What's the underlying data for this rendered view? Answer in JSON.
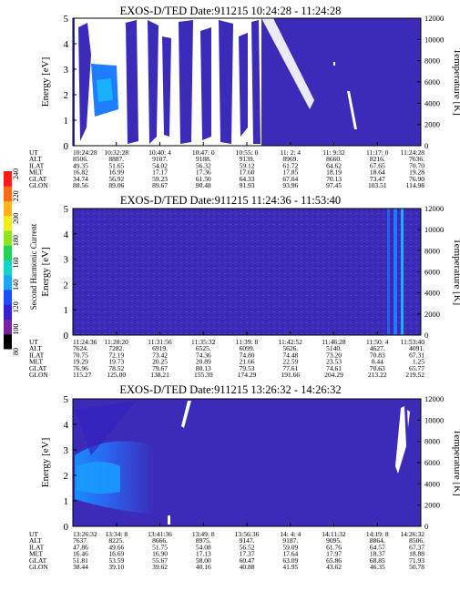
{
  "colorbar": {
    "label": "Second Harmonic Current",
    "ticks": [
      "80",
      "100",
      "120",
      "140",
      "160",
      "180",
      "200",
      "220",
      "240"
    ],
    "colors": [
      "#000000",
      "#7a1fa2",
      "#3a1fd0",
      "#1a4bff",
      "#1aa8ff",
      "#12d6c8",
      "#1fd35a",
      "#8ee61f",
      "#f2ee1a",
      "#ffb21a",
      "#ff6a14",
      "#ff1a1a"
    ]
  },
  "chart_data": [
    {
      "type": "heatmap",
      "title": "EXOS-D/TED   Date:911215  10:24:28 - 11:24:28",
      "ylabel": "Energy [eV]",
      "ylabel_right": "Temperature [K]",
      "ylim": [
        0,
        5
      ],
      "yticks": [
        "0",
        "1",
        "2",
        "3",
        "4",
        "5"
      ],
      "ylim_right": [
        0,
        12000
      ],
      "yticks_right": [
        "0",
        "2000",
        "4000",
        "6000",
        "8000",
        "10000",
        "12000"
      ],
      "table_rows": [
        "UT",
        "ALT",
        "ILAT",
        "MLT",
        "GLAT",
        "GLON"
      ],
      "table": [
        [
          "10:24:28",
          "10:32:28",
          "10:40: 4",
          "10:47: 0",
          "10:55: 0",
          "11: 2: 4",
          "11: 9:32",
          "11:17: 0",
          "11:24:28"
        ],
        [
          "8506.",
          "8887.",
          "9107.",
          "9188.",
          "9139.",
          "8969.",
          "8660.",
          "8216.",
          "7636."
        ],
        [
          "49.35",
          "51.65",
          "54.02",
          "56.32",
          "59.12",
          "61.72",
          "64.62",
          "67.65",
          "70.70"
        ],
        [
          "16.82",
          "16.99",
          "17.17",
          "17.36",
          "17.60",
          "17.85",
          "18.19",
          "18.64",
          "19.28"
        ],
        [
          "34.74",
          "56.92",
          "59.23",
          "61.50",
          "64.33",
          "67.04",
          "70.13",
          "73.47",
          "76.90"
        ],
        [
          "88.56",
          "89.06",
          "89.67",
          "90.48",
          "91.93",
          "93.96",
          "97.45",
          "103.51",
          "114.98"
        ]
      ]
    },
    {
      "type": "heatmap",
      "title": "EXOS-D/TED   Date:911215  11:24:36 - 11:53:40",
      "ylabel": "Energy [eV]",
      "ylabel_right": "Temperature [K]",
      "ylim": [
        0,
        5
      ],
      "yticks": [
        "0",
        "1",
        "2",
        "3",
        "4",
        "5"
      ],
      "ylim_right": [
        0,
        12000
      ],
      "yticks_right": [
        "0",
        "2000",
        "4000",
        "6000",
        "8000",
        "10000",
        "12000"
      ],
      "table_rows": [
        "UT",
        "ALT",
        "ILAT",
        "MLT",
        "GLAT",
        "GLON"
      ],
      "table": [
        [
          "11:24:36",
          "11:28:20",
          "11:31:56",
          "11:35:32",
          "11:39: 8",
          "11:42:52",
          "11:46:28",
          "11:50: 4",
          "11:53:40"
        ],
        [
          "7624.",
          "7282.",
          "6919.",
          "6525.",
          "6099.",
          "5626.",
          "5140.",
          "4627.",
          "4091."
        ],
        [
          "70.75",
          "72.19",
          "73.42",
          "74.36",
          "74.80",
          "74.48",
          "73.20",
          "70.83",
          "67.31"
        ],
        [
          "19.29",
          "19.73",
          "20.25",
          "20.89",
          "21.66",
          "22.59",
          "23.53",
          "0.44",
          "1.25"
        ],
        [
          "76.96",
          "78.52",
          "79.67",
          "80.13",
          "79.53",
          "77.61",
          "74.61",
          "70.63",
          "65.77"
        ],
        [
          "115.27",
          "125.00",
          "138.21",
          "155.39",
          "174.29",
          "191.66",
          "204.29",
          "213.22",
          "219.52"
        ]
      ]
    },
    {
      "type": "heatmap",
      "title": "EXOS-D/TED   Date:911215  13:26:32 - 14:26:32",
      "ylabel": "Energy [eV]",
      "ylabel_right": "Temperature [K]",
      "ylim": [
        0,
        5
      ],
      "yticks": [
        "0",
        "1",
        "2",
        "3",
        "4",
        "5"
      ],
      "ylim_right": [
        0,
        12000
      ],
      "yticks_right": [
        "0",
        "2000",
        "4000",
        "6000",
        "8000",
        "10000",
        "12000"
      ],
      "table_rows": [
        "UT",
        "ALT",
        "ILAT",
        "MLT",
        "GLAT",
        "GLON"
      ],
      "table": [
        [
          "13:26:32",
          "13:34: 8",
          "13:41:36",
          "13:49: 8",
          "13:56:36",
          "14: 4: 4",
          "14:11:32",
          "14:19: 8",
          "14:26:32"
        ],
        [
          "7637.",
          "8225.",
          "8666.",
          "8975.",
          "9147.",
          "9187.",
          "9095.",
          "8864.",
          "8506."
        ],
        [
          "47.86",
          "49.66",
          "51.75",
          "54.08",
          "56.52",
          "59.09",
          "61.76",
          "64.57",
          "67.37"
        ],
        [
          "16.46",
          "16.69",
          "16.90",
          "17.13",
          "17.37",
          "17.64",
          "17.97",
          "18.37",
          "18.88"
        ],
        [
          "51.81",
          "53.59",
          "55.67",
          "58.00",
          "60.47",
          "63.09",
          "65.86",
          "68.85",
          "71.93"
        ],
        [
          "38.44",
          "39.10",
          "39.62",
          "40.16",
          "40.88",
          "41.95",
          "43.62",
          "46.35",
          "50.78"
        ]
      ]
    }
  ]
}
